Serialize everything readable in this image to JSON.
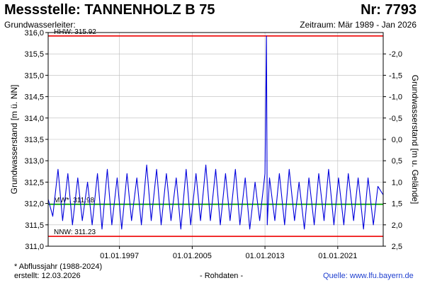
{
  "header": {
    "station_label": "Messstelle: TANNENHOLZ B 75",
    "number_label": "Nr: 7793",
    "aquifer_label": "Grundwasserleiter:",
    "period_label": "Zeitraum: Mär 1989 - Jan 2026"
  },
  "footer": {
    "note": "* Abflussjahr (1988-2024)",
    "created": "erstellt:  12.03.2026",
    "raw": "- Rohdaten -",
    "source": "Quelle: www.lfu.bayern.de"
  },
  "colors": {
    "series": "#0000dd",
    "reference": "#ee0000",
    "mean": "#00aa00",
    "grid": "#bbbbbb"
  },
  "chart_data": {
    "type": "line",
    "ylabel": "Grundwasserstand [m ü. NN]",
    "ylabel_right": "Grundwasserstand [m u. Gelände]",
    "ylim": [
      311.0,
      316.0
    ],
    "xlim": [
      "1989-03-01",
      "2026-01-01"
    ],
    "y_ticks": [
      "311,0",
      "311,5",
      "312,0",
      "312,5",
      "313,0",
      "313,5",
      "314,0",
      "314,5",
      "315,0",
      "315,5",
      "316,0"
    ],
    "y_right_ticks": [
      "2,5",
      "2,0",
      "1,5",
      "1,0",
      "0,5",
      "0,0",
      "-0,5",
      "-1,0",
      "-1,5",
      "-2,0"
    ],
    "y_right_reference": {
      "ground_level_m_nn": 313.5
    },
    "x_ticks": [
      {
        "date": "1997-01-01",
        "label": "01.01.1997"
      },
      {
        "date": "2005-01-01",
        "label": "01.01.2005"
      },
      {
        "date": "2013-01-01",
        "label": "01.01.2013"
      },
      {
        "date": "2021-01-01",
        "label": "01.01.2021"
      }
    ],
    "grid": true,
    "reference_lines": [
      {
        "label": "HHW: 315.92",
        "value": 315.92
      },
      {
        "label": "MW*: 311.98",
        "value": 311.98
      },
      {
        "label": "NNW: 311.23",
        "value": 311.23
      }
    ],
    "series": [
      {
        "x": [
          "1989-03",
          "1989-09",
          "1990-04",
          "1990-10",
          "1991-05",
          "1991-11",
          "1992-06",
          "1992-12",
          "1993-07",
          "1994-01",
          "1994-08",
          "1995-02",
          "1995-09",
          "1996-03",
          "1996-10",
          "1997-04",
          "1997-11",
          "1998-05",
          "1998-12",
          "1999-06",
          "2000-01",
          "2000-07",
          "2001-02",
          "2001-08",
          "2002-03",
          "2002-09",
          "2003-04",
          "2003-10",
          "2004-05",
          "2004-11",
          "2005-06",
          "2005-12",
          "2006-07",
          "2007-01",
          "2007-08",
          "2008-02",
          "2008-09",
          "2009-03",
          "2009-10",
          "2010-04",
          "2010-11",
          "2011-05",
          "2011-12",
          "2012-06",
          "2013-01",
          "2013-03",
          "2013-04",
          "2013-07",
          "2014-02",
          "2014-08",
          "2015-03",
          "2015-09",
          "2016-04",
          "2016-10",
          "2017-05",
          "2017-11",
          "2018-06",
          "2018-12",
          "2019-07",
          "2020-01",
          "2020-08",
          "2021-02",
          "2021-09",
          "2022-03",
          "2022-10",
          "2023-04",
          "2023-11",
          "2024-05",
          "2024-12",
          "2025-06",
          "2026-01"
        ],
        "y": [
          312.1,
          311.7,
          312.8,
          311.6,
          312.7,
          311.5,
          312.6,
          311.6,
          312.5,
          311.5,
          312.7,
          311.4,
          312.8,
          311.5,
          312.6,
          311.4,
          312.7,
          311.6,
          312.6,
          311.5,
          312.9,
          311.6,
          312.8,
          311.5,
          312.7,
          311.6,
          312.6,
          311.4,
          312.8,
          311.5,
          312.7,
          311.6,
          312.9,
          311.6,
          312.8,
          311.5,
          312.7,
          311.6,
          312.8,
          311.5,
          312.6,
          311.4,
          312.5,
          311.6,
          312.7,
          315.92,
          311.5,
          312.6,
          311.6,
          312.7,
          311.5,
          312.8,
          311.6,
          312.5,
          311.4,
          312.6,
          311.5,
          312.7,
          311.6,
          312.8,
          311.5,
          312.6,
          311.5,
          312.7,
          311.6,
          312.6,
          311.4,
          312.6,
          311.5,
          312.4,
          312.2
        ]
      }
    ]
  }
}
